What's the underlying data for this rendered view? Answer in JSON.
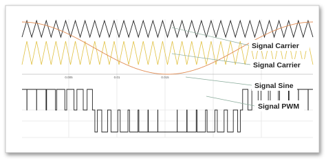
{
  "labels": [
    "Signal Carrier",
    "Signal Carrier",
    "Signal Sine",
    "Signal PWM"
  ],
  "axis_labels": [
    "0.005",
    "0.01",
    "0.015"
  ]
}
